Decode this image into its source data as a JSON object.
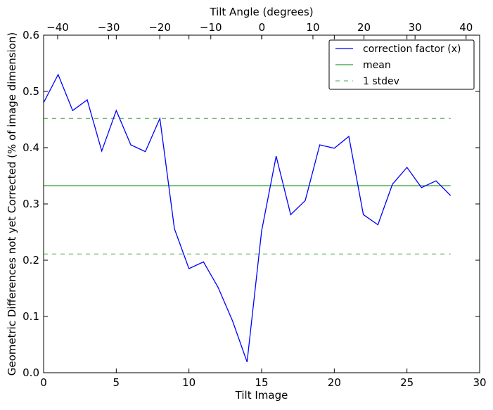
{
  "chart_data": {
    "type": "line",
    "xlabel": "Tilt Image",
    "ylabel": "Geometric Differences not yet Corrected (% of image dimension)",
    "top_xlabel": "Tilt Angle (degrees)",
    "xlim": [
      0,
      30
    ],
    "ylim": [
      0,
      0.6
    ],
    "top_xlim": [
      -42.75,
      42.65
    ],
    "x_ticks": [
      "0",
      "5",
      "10",
      "15",
      "20",
      "25",
      "30"
    ],
    "y_ticks": [
      "0.0",
      "0.1",
      "0.2",
      "0.3",
      "0.4",
      "0.5",
      "0.6"
    ],
    "top_x_ticks": [
      "−40",
      "−30",
      "−20",
      "−10",
      "0",
      "10",
      "20",
      "30",
      "40"
    ],
    "grid": false,
    "legend_placement": "top-right",
    "x": [
      0,
      1,
      2,
      3,
      4,
      5,
      6,
      7,
      8,
      9,
      10,
      11,
      12,
      13,
      14,
      15,
      16,
      17,
      18,
      19,
      20,
      21,
      22,
      23,
      24,
      25,
      26,
      27,
      28
    ],
    "series": [
      {
        "name": "correction factor (x)",
        "color": "#0000ff",
        "style": "solid",
        "values": [
          0.48,
          0.53,
          0.466,
          0.485,
          0.394,
          0.466,
          0.405,
          0.393,
          0.452,
          0.256,
          0.185,
          0.197,
          0.152,
          0.092,
          0.019,
          0.252,
          0.385,
          0.281,
          0.306,
          0.405,
          0.399,
          0.42,
          0.281,
          0.263,
          0.335,
          0.365,
          0.329,
          0.341,
          0.315
        ]
      },
      {
        "name": "mean",
        "color": "#2ca02c",
        "style": "solid",
        "value": 0.3325,
        "x_range": [
          0,
          28
        ]
      },
      {
        "name": "1 stdev",
        "color": "#2ca02c",
        "style": "dashed",
        "values_pair": [
          0.452,
          0.211
        ],
        "x_range": [
          0,
          28
        ]
      }
    ]
  }
}
